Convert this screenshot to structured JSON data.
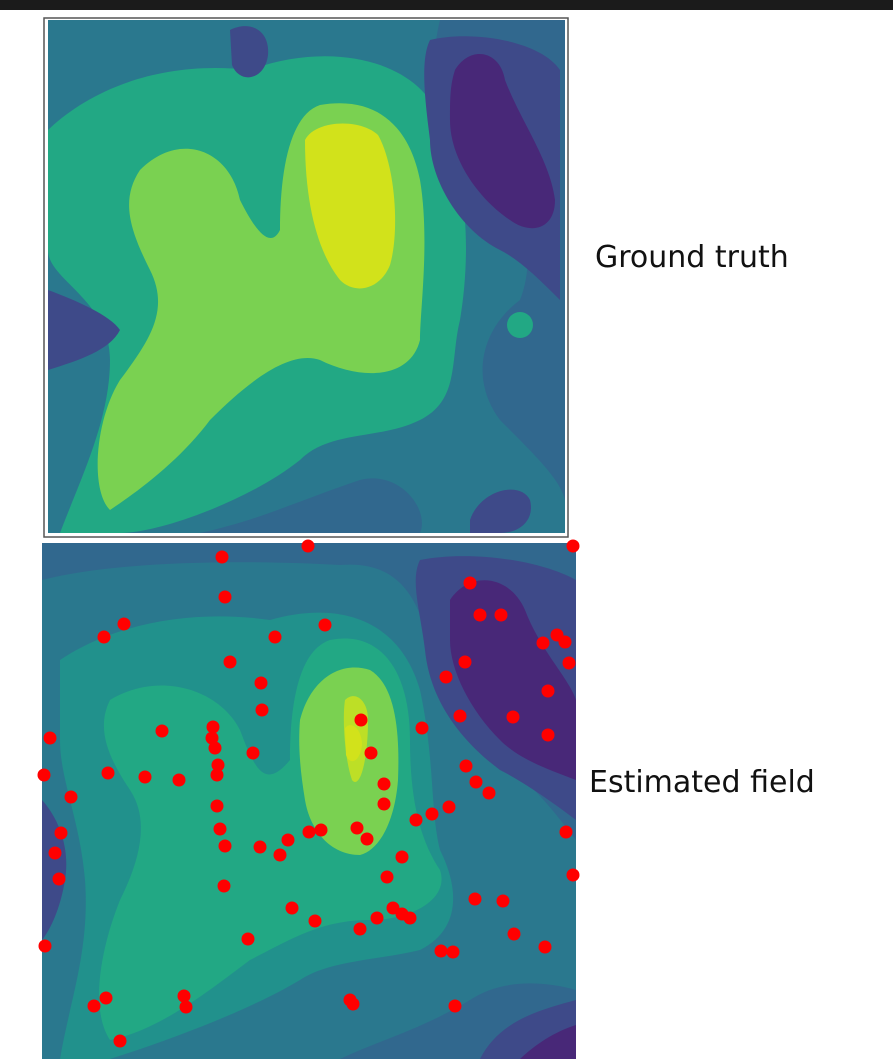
{
  "panels": [
    {
      "label": "Ground truth"
    },
    {
      "label": "Estimated field"
    }
  ]
}
